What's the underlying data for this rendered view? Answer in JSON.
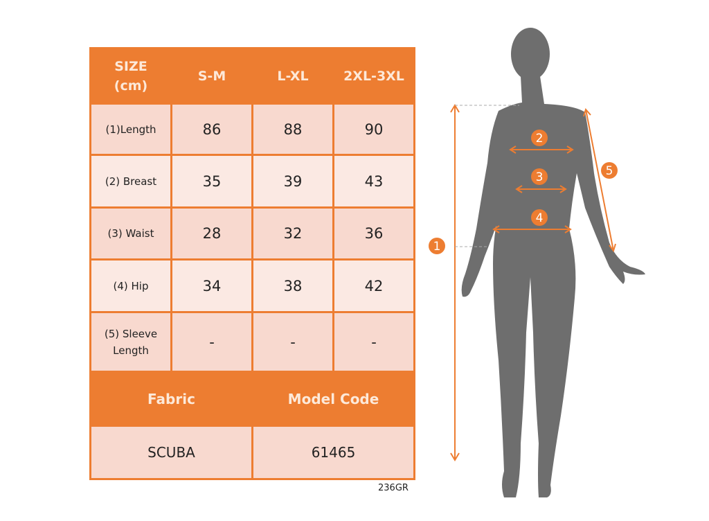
{
  "table": {
    "header": [
      "SIZE\n(cm)",
      "S-M",
      "L-XL",
      "2XL-3XL"
    ],
    "rows": [
      {
        "label": "(1)Length",
        "values": [
          "86",
          "88",
          "90"
        ]
      },
      {
        "label": "(2) Breast",
        "values": [
          "35",
          "39",
          "43"
        ]
      },
      {
        "label": "(3) Waist",
        "values": [
          "28",
          "32",
          "36"
        ]
      },
      {
        "label": "(4) Hip",
        "values": [
          "34",
          "38",
          "42"
        ]
      },
      {
        "label": "(5) Sleeve Length",
        "values": [
          "-",
          "-",
          "-"
        ]
      }
    ],
    "fabric_label": "Fabric",
    "model_code_label": "Model Code",
    "fabric_value": "SCUBA",
    "model_code_value": "61465"
  },
  "code": "236GR",
  "figure": {
    "markers": [
      "1",
      "2",
      "3",
      "4",
      "5"
    ],
    "silhouette_color": "#6e6e6e",
    "accent_color": "#ed7d31"
  }
}
